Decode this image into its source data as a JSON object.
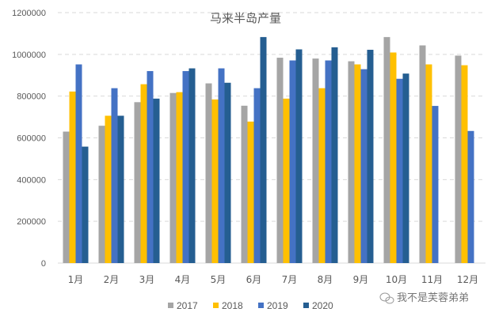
{
  "chart_data": {
    "type": "bar",
    "title": "马来半岛产量",
    "xlabel": "",
    "ylabel": "",
    "ylim": [
      0,
      1200000
    ],
    "yticks": [
      0,
      200000,
      400000,
      600000,
      800000,
      1000000,
      1200000
    ],
    "grid": true,
    "legend_position": "bottom",
    "categories": [
      "1月",
      "2月",
      "3月",
      "4月",
      "5月",
      "6月",
      "7月",
      "8月",
      "9月",
      "10月",
      "11月",
      "12月"
    ],
    "series": [
      {
        "name": "2017",
        "color": "#A5A5A5",
        "values": [
          630000,
          658000,
          771000,
          815000,
          861000,
          754000,
          984000,
          980000,
          967000,
          1083000,
          1043000,
          994000
        ]
      },
      {
        "name": "2018",
        "color": "#FFC000",
        "values": [
          822000,
          706000,
          857000,
          819000,
          784000,
          678000,
          788000,
          838000,
          952000,
          1009000,
          952000,
          948000
        ]
      },
      {
        "name": "2019",
        "color": "#4472C4",
        "values": [
          952000,
          838000,
          920000,
          920000,
          933000,
          838000,
          971000,
          971000,
          929000,
          883000,
          753000,
          633000
        ]
      },
      {
        "name": "2020",
        "color": "#255E91",
        "values": [
          558000,
          706000,
          788000,
          933000,
          864000,
          1083000,
          1024000,
          1034000,
          1022000,
          908000,
          null,
          null
        ]
      }
    ]
  },
  "watermark": {
    "text": "我不是芙蓉弟弟",
    "icon": "wechat-icon"
  }
}
